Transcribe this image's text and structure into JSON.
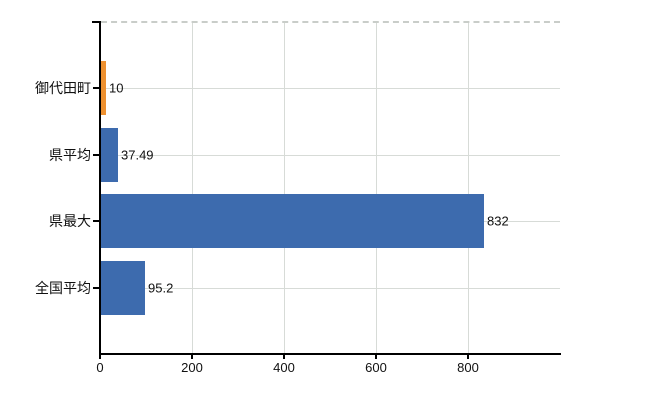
{
  "chart_data": {
    "type": "bar",
    "orientation": "horizontal",
    "title": "",
    "xlabel": "",
    "ylabel": "",
    "categories": [
      "御代田町",
      "県平均",
      "県最大",
      "全国平均"
    ],
    "values": [
      10,
      37.49,
      832,
      95.2
    ],
    "value_labels": [
      "10",
      "37.49",
      "832",
      "95.2"
    ],
    "bar_colors": [
      "#ee9130",
      "#3d6bae",
      "#3d6bae",
      "#3d6bae"
    ],
    "x_ticks": [
      0,
      200,
      400,
      600,
      800
    ],
    "x_tick_labels": [
      "0",
      "200",
      "400",
      "600",
      "800"
    ],
    "xlim": [
      0,
      1000
    ],
    "grid": true,
    "legend": false,
    "colors": {
      "background": "#ffffff",
      "axis": "#000000",
      "grid": "#d7dbd7",
      "top_border": "#c9cdc9",
      "text": "#111111",
      "bar_blue": "#3d6bae",
      "bar_orange": "#ee9130"
    }
  }
}
